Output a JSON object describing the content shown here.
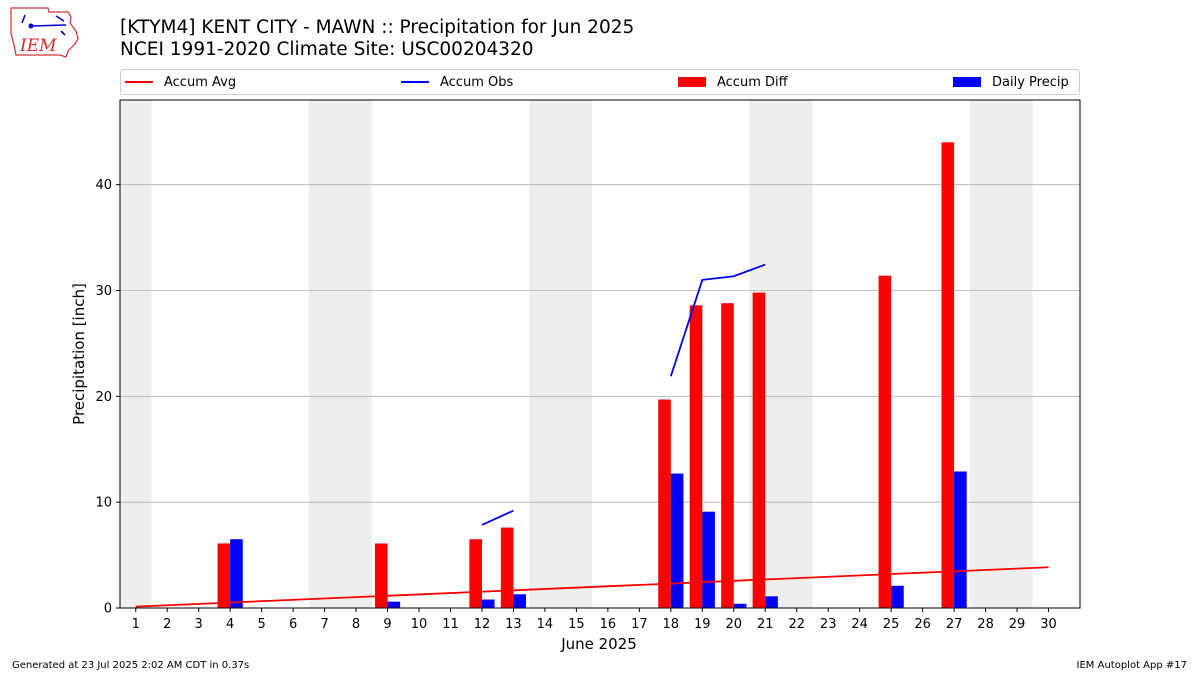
{
  "header": {
    "logo_text": "IEM",
    "title_line1": "[KTYM4] KENT CITY - MAWN :: Precipitation for Jun 2025",
    "title_line2": "NCEI 1991-2020 Climate Site: USC00204320"
  },
  "footer": {
    "left": "Generated at 23 Jul 2025 2:02 AM CDT in 0.37s",
    "right": "IEM Autoplot App #17"
  },
  "colors": {
    "accum_avg": "#ff0000",
    "accum_obs": "#0000ff",
    "accum_diff": "#ff0000",
    "daily_precip": "#0000ff",
    "weekend_shade": "#eeeeee",
    "grid": "#b0b0b0"
  },
  "chart_data": {
    "type": "bar",
    "xlabel": "June 2025",
    "ylabel": "Precipitation [inch]",
    "xlim": [
      0.5,
      31
    ],
    "ylim": [
      0,
      48
    ],
    "y_ticks": [
      0,
      10,
      20,
      30,
      40
    ],
    "grid": "horizontal",
    "legend_placement": "top",
    "legend": [
      "Accum Avg",
      "Accum Obs",
      "Accum Diff",
      "Daily Precip"
    ],
    "days": [
      1,
      2,
      3,
      4,
      5,
      6,
      7,
      8,
      9,
      10,
      11,
      12,
      13,
      14,
      15,
      16,
      17,
      18,
      19,
      20,
      21,
      22,
      23,
      24,
      25,
      26,
      27,
      28,
      29,
      30
    ],
    "weekend_spans": [
      [
        0.5,
        1.5
      ],
      [
        6.5,
        8.5
      ],
      [
        13.5,
        15.5
      ],
      [
        20.5,
        22.5
      ],
      [
        27.5,
        29.5
      ]
    ],
    "series": [
      {
        "name": "Accum Avg",
        "kind": "line",
        "x": [
          1,
          30
        ],
        "values": [
          0.13,
          3.85
        ]
      },
      {
        "name": "Accum Obs",
        "kind": "line",
        "segments": [
          {
            "x": [
              12,
              13
            ],
            "values": [
              7.85,
              9.2
            ]
          },
          {
            "x": [
              18,
              19,
              20,
              21
            ],
            "values": [
              21.9,
              31.0,
              31.35,
              32.45
            ]
          }
        ]
      },
      {
        "name": "Accum Diff",
        "kind": "bar",
        "x": [
          4,
          9,
          12,
          13,
          18,
          19,
          20,
          21,
          25,
          27
        ],
        "values": [
          6.1,
          6.1,
          6.5,
          7.6,
          19.7,
          28.6,
          28.8,
          29.8,
          31.4,
          44.0
        ]
      },
      {
        "name": "Daily Precip",
        "kind": "bar",
        "x": [
          4,
          9,
          12,
          13,
          18,
          19,
          20,
          21,
          25,
          27
        ],
        "values": [
          6.5,
          0.6,
          0.8,
          1.3,
          12.7,
          9.1,
          0.4,
          1.1,
          2.1,
          12.9
        ]
      }
    ]
  }
}
